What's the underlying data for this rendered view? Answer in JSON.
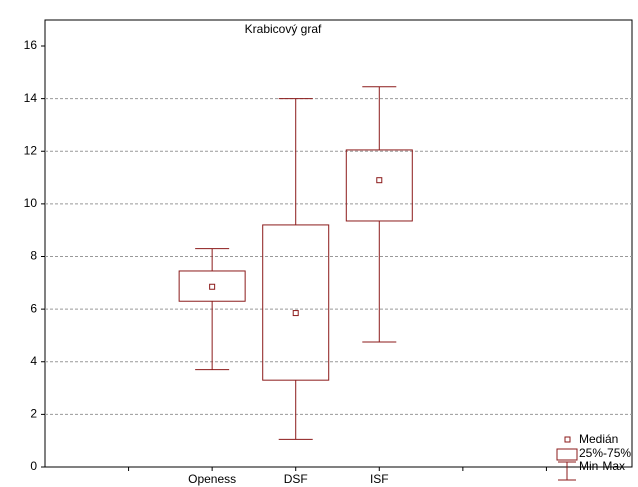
{
  "chart_data": {
    "type": "box",
    "title": "Krabicový graf",
    "categories": [
      null,
      "Openess",
      "DSF",
      "ISF",
      null,
      null
    ],
    "min": [
      null,
      3.7,
      1.05,
      4.75,
      null,
      null
    ],
    "q1": [
      null,
      6.3,
      3.3,
      9.35,
      null,
      null
    ],
    "median": [
      null,
      6.85,
      5.85,
      10.9,
      null,
      null
    ],
    "q3": [
      null,
      7.45,
      9.2,
      12.05,
      null,
      null
    ],
    "max": [
      null,
      8.3,
      14.0,
      14.45,
      null,
      null
    ],
    "color": "#8b1a1a",
    "legend_labels": {
      "median": "Medián",
      "box": "25%-75%",
      "whisker": "Min-Max"
    },
    "ylim": [
      0,
      16
    ],
    "yticks": [
      0,
      2,
      4,
      6,
      8,
      10,
      12,
      14,
      16
    ],
    "grid": true
  }
}
